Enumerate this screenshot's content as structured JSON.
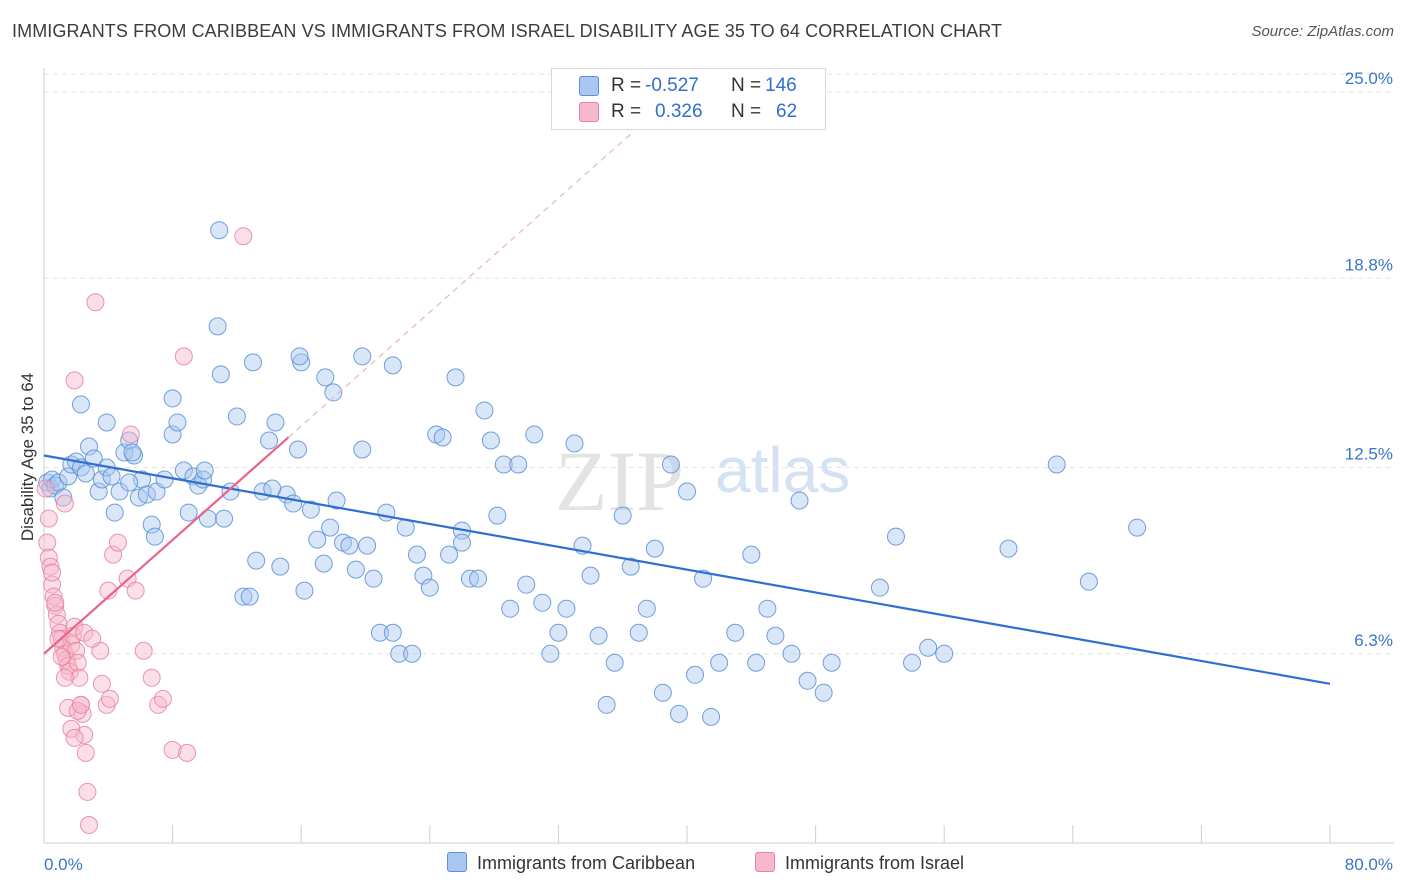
{
  "title": "IMMIGRANTS FROM CARIBBEAN VS IMMIGRANTS FROM ISRAEL DISABILITY AGE 35 TO 64 CORRELATION CHART",
  "source": "Source: ZipAtlas.com",
  "watermark": {
    "zip": "ZIP",
    "atlas": "atlas"
  },
  "legend_stats": [
    {
      "r_label": "R =",
      "r_value": "-0.527",
      "n_label": "N =",
      "n_value": "146"
    },
    {
      "r_label": "R =",
      "r_value": "0.326",
      "n_label": "N =",
      "n_value": "62"
    }
  ],
  "colors": {
    "blue_fill": "#a9c7f0",
    "blue_stroke": "#5b8fd6",
    "blue_line": "#2e6fd0",
    "pink_fill": "#f6b8cc",
    "pink_stroke": "#e8829f",
    "pink_line": "#e8638c",
    "grid": "#e2e2e2",
    "axis_text": "#3a75c9"
  },
  "chart_data": {
    "type": "scatter",
    "title": "IMMIGRANTS FROM CARIBBEAN VS IMMIGRANTS FROM ISRAEL DISABILITY AGE 35 TO 64 CORRELATION CHART",
    "xlabel": "",
    "ylabel": "Disability Age 35 to 64",
    "xlim": [
      0,
      80
    ],
    "ylim": [
      0,
      25.6
    ],
    "x_tick_labels": [
      "0.0%",
      "80.0%"
    ],
    "y_ticks": [
      6.3,
      12.5,
      18.8,
      25.0
    ],
    "y_tick_labels": [
      "6.3%",
      "12.5%",
      "18.8%",
      "25.0%"
    ],
    "grid": true,
    "legend_position": "bottom",
    "series": [
      {
        "name": "Immigrants from Caribbean",
        "color": "#a9c7f0",
        "trend": {
          "x": [
            0,
            80
          ],
          "y": [
            12.9,
            5.3
          ]
        },
        "points": [
          [
            0.2,
            12.0
          ],
          [
            0.4,
            11.8
          ],
          [
            0.5,
            12.1
          ],
          [
            0.7,
            11.9
          ],
          [
            0.9,
            12.0
          ],
          [
            1.2,
            11.5
          ],
          [
            1.5,
            12.2
          ],
          [
            1.7,
            12.6
          ],
          [
            2.0,
            12.7
          ],
          [
            2.3,
            12.5
          ],
          [
            2.6,
            12.3
          ],
          [
            2.8,
            13.2
          ],
          [
            3.1,
            12.8
          ],
          [
            3.4,
            11.7
          ],
          [
            3.6,
            12.1
          ],
          [
            3.9,
            12.5
          ],
          [
            4.2,
            12.2
          ],
          [
            4.4,
            11.0
          ],
          [
            4.7,
            11.7
          ],
          [
            5.0,
            13.0
          ],
          [
            5.3,
            13.4
          ],
          [
            5.6,
            12.9
          ],
          [
            5.9,
            11.5
          ],
          [
            6.1,
            12.1
          ],
          [
            6.4,
            11.6
          ],
          [
            6.7,
            10.6
          ],
          [
            7.0,
            11.7
          ],
          [
            2.3,
            14.6
          ],
          [
            10.9,
            20.4
          ],
          [
            5.3,
            12.0
          ],
          [
            6.9,
            10.2
          ],
          [
            7.5,
            12.1
          ],
          [
            8.0,
            13.6
          ],
          [
            8.3,
            14.0
          ],
          [
            8.7,
            12.4
          ],
          [
            9.0,
            11.0
          ],
          [
            9.3,
            12.2
          ],
          [
            9.6,
            11.9
          ],
          [
            9.9,
            12.1
          ],
          [
            10.2,
            10.8
          ],
          [
            10.8,
            17.2
          ],
          [
            11.2,
            10.8
          ],
          [
            11.6,
            11.7
          ],
          [
            12.0,
            14.2
          ],
          [
            12.4,
            8.2
          ],
          [
            12.8,
            8.2
          ],
          [
            13.2,
            9.4
          ],
          [
            13.6,
            11.7
          ],
          [
            14.0,
            13.4
          ],
          [
            14.4,
            14.0
          ],
          [
            14.7,
            9.2
          ],
          [
            15.1,
            11.6
          ],
          [
            15.5,
            11.3
          ],
          [
            15.8,
            13.1
          ],
          [
            16.2,
            8.4
          ],
          [
            16.6,
            11.1
          ],
          [
            17.0,
            10.1
          ],
          [
            17.4,
            9.3
          ],
          [
            17.8,
            10.5
          ],
          [
            18.2,
            11.4
          ],
          [
            18.6,
            10.0
          ],
          [
            19.0,
            9.9
          ],
          [
            19.4,
            9.1
          ],
          [
            19.8,
            13.1
          ],
          [
            20.1,
            9.9
          ],
          [
            20.5,
            8.8
          ],
          [
            20.9,
            7.0
          ],
          [
            21.3,
            11.0
          ],
          [
            21.7,
            7.0
          ],
          [
            22.1,
            6.3
          ],
          [
            22.5,
            10.5
          ],
          [
            22.9,
            6.3
          ],
          [
            23.2,
            9.6
          ],
          [
            23.6,
            8.9
          ],
          [
            24.0,
            8.5
          ],
          [
            24.4,
            13.6
          ],
          [
            24.8,
            13.5
          ],
          [
            25.2,
            9.6
          ],
          [
            25.6,
            15.5
          ],
          [
            26.0,
            10.4
          ],
          [
            26.5,
            8.8
          ],
          [
            27.0,
            8.8
          ],
          [
            27.4,
            14.4
          ],
          [
            27.8,
            13.4
          ],
          [
            28.2,
            10.9
          ],
          [
            28.6,
            12.6
          ],
          [
            29.0,
            7.8
          ],
          [
            29.5,
            12.6
          ],
          [
            30.0,
            8.6
          ],
          [
            30.5,
            13.6
          ],
          [
            31.0,
            8.0
          ],
          [
            31.5,
            6.3
          ],
          [
            32.0,
            7.0
          ],
          [
            32.5,
            7.8
          ],
          [
            33.0,
            13.3
          ],
          [
            33.5,
            9.9
          ],
          [
            34.0,
            8.9
          ],
          [
            34.5,
            6.9
          ],
          [
            35.0,
            4.6
          ],
          [
            35.5,
            6.0
          ],
          [
            36.0,
            10.9
          ],
          [
            36.5,
            9.2
          ],
          [
            37.0,
            7.0
          ],
          [
            37.5,
            7.8
          ],
          [
            38.0,
            9.8
          ],
          [
            38.5,
            5.0
          ],
          [
            39.0,
            12.6
          ],
          [
            39.5,
            4.3
          ],
          [
            40.0,
            11.7
          ],
          [
            40.5,
            5.6
          ],
          [
            41.0,
            8.8
          ],
          [
            41.5,
            4.2
          ],
          [
            42.0,
            6.0
          ],
          [
            43.0,
            7.0
          ],
          [
            44.0,
            9.6
          ],
          [
            44.3,
            6.0
          ],
          [
            45.0,
            7.8
          ],
          [
            45.5,
            6.9
          ],
          [
            46.5,
            6.3
          ],
          [
            47.0,
            11.4
          ],
          [
            47.5,
            5.4
          ],
          [
            48.5,
            5.0
          ],
          [
            49.0,
            6.0
          ],
          [
            52.0,
            8.5
          ],
          [
            53.0,
            10.2
          ],
          [
            54.0,
            6.0
          ],
          [
            55.0,
            6.5
          ],
          [
            56.0,
            6.3
          ],
          [
            60.0,
            9.8
          ],
          [
            63.0,
            12.6
          ],
          [
            65.0,
            8.7
          ],
          [
            68.0,
            10.5
          ],
          [
            13.0,
            16.0
          ],
          [
            16.0,
            16.0
          ],
          [
            17.5,
            15.5
          ],
          [
            8.0,
            14.8
          ],
          [
            18.0,
            15.0
          ],
          [
            21.7,
            15.9
          ],
          [
            3.9,
            14.0
          ],
          [
            5.5,
            13.0
          ],
          [
            14.2,
            11.8
          ],
          [
            10.0,
            12.4
          ],
          [
            15.9,
            16.2
          ],
          [
            19.8,
            16.2
          ],
          [
            26.0,
            10.0
          ],
          [
            11.0,
            15.6
          ]
        ]
      },
      {
        "name": "Immigrants from Israel",
        "color": "#f6b8cc",
        "trend": {
          "x": [
            0,
            15.2
          ],
          "y": [
            6.3,
            13.5
          ]
        },
        "trend_extended": {
          "x": [
            15.2,
            36.5
          ],
          "y": [
            13.5,
            23.6
          ]
        },
        "points": [
          [
            0.1,
            11.8
          ],
          [
            0.2,
            10.0
          ],
          [
            0.3,
            9.5
          ],
          [
            0.4,
            9.2
          ],
          [
            0.5,
            8.6
          ],
          [
            0.6,
            8.2
          ],
          [
            0.7,
            7.9
          ],
          [
            0.8,
            7.6
          ],
          [
            0.9,
            7.3
          ],
          [
            1.0,
            7.0
          ],
          [
            1.1,
            6.8
          ],
          [
            1.2,
            6.5
          ],
          [
            1.3,
            6.3
          ],
          [
            1.4,
            6.1
          ],
          [
            1.5,
            5.9
          ],
          [
            1.6,
            5.7
          ],
          [
            1.7,
            6.6
          ],
          [
            1.8,
            6.9
          ],
          [
            1.9,
            7.2
          ],
          [
            2.0,
            6.4
          ],
          [
            2.1,
            6.0
          ],
          [
            2.2,
            5.5
          ],
          [
            2.3,
            4.6
          ],
          [
            2.4,
            4.3
          ],
          [
            2.5,
            3.6
          ],
          [
            2.6,
            3.0
          ],
          [
            2.7,
            1.7
          ],
          [
            2.8,
            0.6
          ],
          [
            0.3,
            10.8
          ],
          [
            0.5,
            9.0
          ],
          [
            0.7,
            8.0
          ],
          [
            0.9,
            6.8
          ],
          [
            1.1,
            6.2
          ],
          [
            1.3,
            5.5
          ],
          [
            1.5,
            4.5
          ],
          [
            1.7,
            3.8
          ],
          [
            1.9,
            3.5
          ],
          [
            2.1,
            4.4
          ],
          [
            2.3,
            4.6
          ],
          [
            3.5,
            6.4
          ],
          [
            3.6,
            5.3
          ],
          [
            3.9,
            4.6
          ],
          [
            4.1,
            4.8
          ],
          [
            4.3,
            9.6
          ],
          [
            4.6,
            10.0
          ],
          [
            5.2,
            8.8
          ],
          [
            5.7,
            8.4
          ],
          [
            6.2,
            6.4
          ],
          [
            6.7,
            5.5
          ],
          [
            7.1,
            4.6
          ],
          [
            7.4,
            4.8
          ],
          [
            8.0,
            3.1
          ],
          [
            8.9,
            3.0
          ],
          [
            3.2,
            18.0
          ],
          [
            1.9,
            15.4
          ],
          [
            5.4,
            13.6
          ],
          [
            8.7,
            16.2
          ],
          [
            12.4,
            20.2
          ],
          [
            1.3,
            11.3
          ],
          [
            2.5,
            7.0
          ],
          [
            3.0,
            6.8
          ],
          [
            4.0,
            8.4
          ]
        ]
      }
    ]
  },
  "bottom_legend": [
    "Immigrants from Caribbean",
    "Immigrants from Israel"
  ]
}
